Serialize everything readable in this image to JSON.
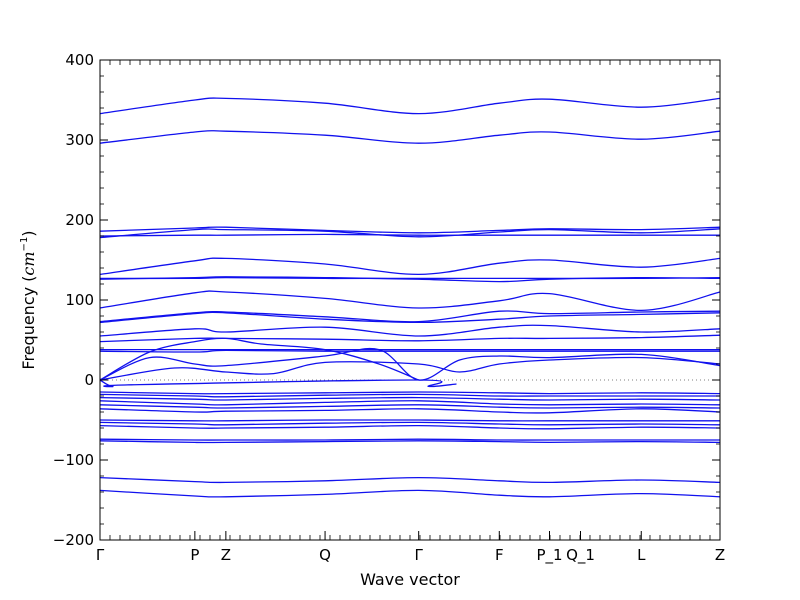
{
  "chart_data": {
    "type": "line",
    "title": "",
    "xlabel": "Wave vector",
    "ylabel": "Frequency",
    "ylabel_unit": "cm",
    "ylabel_unit_power": "−1",
    "ylim": [
      -200,
      400
    ],
    "yticks": [
      400,
      300,
      200,
      100,
      0,
      -100,
      -200
    ],
    "ytick_labels": [
      "400",
      "300",
      "200",
      "100",
      "0",
      "−100",
      "−200"
    ],
    "grid": false,
    "zero_line": "dotted",
    "line_color": "#1111ee",
    "xlim": [
      0,
      1
    ],
    "xticks": [
      {
        "label": "Γ",
        "pos": 0.0
      },
      {
        "label": "P",
        "pos": 0.153
      },
      {
        "label": "Z",
        "pos": 0.203
      },
      {
        "label": "Q",
        "pos": 0.363
      },
      {
        "label": "Γ",
        "pos": 0.514
      },
      {
        "label": "F",
        "pos": 0.644
      },
      {
        "label": "P_1",
        "pos": 0.725
      },
      {
        "label": "Q_1",
        "pos": 0.775
      },
      {
        "label": "L",
        "pos": 0.873
      },
      {
        "label": "Z",
        "pos": 1.0
      }
    ],
    "series": [
      {
        "x": [
          0,
          0.153,
          0.203,
          0.363,
          0.514,
          0.644,
          0.725,
          0.873,
          1.0
        ],
        "values": [
          333,
          350,
          352,
          346,
          333,
          346,
          351,
          341,
          352
        ]
      },
      {
        "x": [
          0,
          0.153,
          0.203,
          0.363,
          0.514,
          0.644,
          0.725,
          0.873,
          1.0
        ],
        "values": [
          296,
          310,
          311,
          306,
          296,
          306,
          310,
          301,
          311
        ]
      },
      {
        "x": [
          0,
          0.153,
          0.203,
          0.363,
          0.514,
          0.644,
          0.725,
          0.873,
          1.0
        ],
        "values": [
          186,
          190,
          191,
          187,
          184,
          187,
          189,
          188,
          191
        ]
      },
      {
        "x": [
          0,
          0.153,
          0.203,
          0.363,
          0.514,
          0.644,
          0.725,
          0.873,
          1.0
        ],
        "values": [
          178,
          188,
          188,
          186,
          179,
          185,
          188,
          184,
          189
        ]
      },
      {
        "x": [
          0,
          0.153,
          0.203,
          0.363,
          0.514,
          0.644,
          0.725,
          0.873,
          1.0
        ],
        "values": [
          180,
          181,
          181,
          182,
          181,
          181,
          181,
          181,
          181
        ]
      },
      {
        "x": [
          0,
          0.153,
          0.203,
          0.363,
          0.514,
          0.644,
          0.725,
          0.873,
          1.0
        ],
        "values": [
          132,
          149,
          152,
          145,
          132,
          146,
          150,
          141,
          152
        ]
      },
      {
        "x": [
          0,
          0.153,
          0.203,
          0.363,
          0.514,
          0.644,
          0.725,
          0.873,
          1.0
        ],
        "values": [
          127,
          127,
          128,
          127,
          127,
          127,
          127,
          127,
          128
        ]
      },
      {
        "x": [
          0,
          0.153,
          0.203,
          0.363,
          0.514,
          0.644,
          0.725,
          0.873,
          1.0
        ],
        "values": [
          126,
          128,
          129,
          128,
          126,
          123,
          126,
          128,
          127
        ]
      },
      {
        "x": [
          0,
          0.153,
          0.203,
          0.363,
          0.514,
          0.644,
          0.725,
          0.873,
          1.0
        ],
        "values": [
          90,
          109,
          110,
          102,
          90,
          99,
          108,
          87,
          110
        ]
      },
      {
        "x": [
          0,
          0.153,
          0.203,
          0.363,
          0.514,
          0.644,
          0.725,
          0.873,
          1.0
        ],
        "values": [
          73,
          84,
          85,
          79,
          73,
          86,
          83,
          85,
          86
        ]
      },
      {
        "x": [
          0,
          0.153,
          0.203,
          0.363,
          0.514,
          0.644,
          0.725,
          0.873,
          1.0
        ],
        "values": [
          72,
          83,
          84,
          76,
          72,
          76,
          80,
          82,
          84
        ]
      },
      {
        "x": [
          0,
          0.153,
          0.203,
          0.363,
          0.514,
          0.644,
          0.725,
          0.873,
          1.0
        ],
        "values": [
          55,
          64,
          60,
          66,
          55,
          66,
          68,
          60,
          64
        ]
      },
      {
        "x": [
          0,
          0.153,
          0.203,
          0.363,
          0.514,
          0.644,
          0.725,
          0.873,
          1.0
        ],
        "values": [
          48,
          52,
          52,
          51,
          49,
          52,
          52,
          53,
          56
        ]
      },
      {
        "x": [
          0,
          0.153,
          0.203,
          0.363,
          0.514,
          0.644,
          0.725,
          0.873,
          1.0
        ],
        "values": [
          38,
          38,
          38,
          38,
          38,
          38,
          38,
          38,
          38
        ]
      },
      {
        "x": [
          0,
          0.153,
          0.203,
          0.363,
          0.514,
          0.644,
          0.725,
          0.873,
          1.0
        ],
        "values": [
          36,
          35,
          37,
          36,
          36,
          36,
          36,
          36,
          36
        ]
      },
      {
        "x": [
          0,
          0.08,
          0.153,
          0.203,
          0.26,
          0.363,
          0.45,
          0.514
        ],
        "values": [
          0,
          35,
          48,
          52,
          45,
          38,
          20,
          0
        ]
      },
      {
        "x": [
          0,
          0.08,
          0.153,
          0.203,
          0.363,
          0.45,
          0.514,
          0.58,
          0.644,
          0.725,
          0.873,
          1.0
        ],
        "values": [
          0,
          28,
          20,
          18,
          30,
          38,
          0,
          25,
          30,
          28,
          32,
          18
        ]
      },
      {
        "x": [
          0,
          0.12,
          0.203,
          0.28,
          0.363,
          0.514,
          0.58,
          0.644,
          0.725,
          0.873,
          1.0
        ],
        "values": [
          0,
          15,
          10,
          8,
          22,
          20,
          10,
          20,
          25,
          28,
          20
        ]
      },
      {
        "x": [
          0,
          0.02,
          0.05,
          0.514,
          0.53,
          0.575
        ],
        "values": [
          0,
          -8,
          -6,
          0,
          -8,
          -5
        ]
      },
      {
        "x": [
          0,
          0.153,
          0.203,
          0.363,
          0.514,
          0.644,
          0.725,
          0.873,
          1.0
        ],
        "values": [
          -15,
          -17,
          -17,
          -16,
          -15,
          -16,
          -17,
          -16,
          -17
        ]
      },
      {
        "x": [
          0,
          0.153,
          0.203,
          0.363,
          0.514,
          0.644,
          0.725,
          0.873,
          1.0
        ],
        "values": [
          -18,
          -20,
          -21,
          -19,
          -18,
          -20,
          -20,
          -20,
          -20
        ]
      },
      {
        "x": [
          0,
          0.153,
          0.203,
          0.363,
          0.514,
          0.644,
          0.725,
          0.873,
          1.0
        ],
        "values": [
          -22,
          -24,
          -25,
          -23,
          -22,
          -24,
          -25,
          -24,
          -25
        ]
      },
      {
        "x": [
          0,
          0.153,
          0.203,
          0.363,
          0.514,
          0.644,
          0.725,
          0.873,
          1.0
        ],
        "values": [
          -26,
          -30,
          -31,
          -28,
          -26,
          -30,
          -31,
          -30,
          -31
        ]
      },
      {
        "x": [
          0,
          0.153,
          0.203,
          0.363,
          0.514,
          0.644,
          0.725,
          0.873,
          1.0
        ],
        "values": [
          -31,
          -34,
          -35,
          -33,
          -31,
          -34,
          -35,
          -34,
          -35
        ]
      },
      {
        "x": [
          0,
          0.153,
          0.203,
          0.363,
          0.514,
          0.644,
          0.725,
          0.873,
          1.0
        ],
        "values": [
          -36,
          -40,
          -39,
          -38,
          -36,
          -40,
          -41,
          -36,
          -40
        ]
      },
      {
        "x": [
          0,
          0.153,
          0.203,
          0.363,
          0.514,
          0.644,
          0.725,
          0.873,
          1.0
        ],
        "values": [
          -50,
          -51,
          -51,
          -50,
          -50,
          -51,
          -51,
          -51,
          -51
        ]
      },
      {
        "x": [
          0,
          0.153,
          0.203,
          0.363,
          0.514,
          0.644,
          0.725,
          0.873,
          1.0
        ],
        "values": [
          -53,
          -55,
          -56,
          -54,
          -53,
          -55,
          -56,
          -55,
          -56
        ]
      },
      {
        "x": [
          0,
          0.153,
          0.203,
          0.363,
          0.514,
          0.644,
          0.725,
          0.873,
          1.0
        ],
        "values": [
          -57,
          -60,
          -60,
          -59,
          -57,
          -60,
          -61,
          -59,
          -60
        ]
      },
      {
        "x": [
          0,
          0.153,
          0.203,
          0.363,
          0.514,
          0.644,
          0.725,
          0.873,
          1.0
        ],
        "values": [
          -74,
          -75,
          -75,
          -75,
          -74,
          -75,
          -75,
          -75,
          -75
        ]
      },
      {
        "x": [
          0,
          0.153,
          0.203,
          0.363,
          0.514,
          0.644,
          0.725,
          0.873,
          1.0
        ],
        "values": [
          -76,
          -78,
          -78,
          -77,
          -76,
          -77,
          -78,
          -77,
          -78
        ]
      },
      {
        "x": [
          0,
          0.153,
          0.203,
          0.363,
          0.514,
          0.644,
          0.725,
          0.873,
          1.0
        ],
        "values": [
          -122,
          -127,
          -128,
          -126,
          -122,
          -126,
          -128,
          -125,
          -128
        ]
      },
      {
        "x": [
          0,
          0.153,
          0.203,
          0.363,
          0.514,
          0.644,
          0.725,
          0.873,
          1.0
        ],
        "values": [
          -138,
          -145,
          -146,
          -143,
          -138,
          -144,
          -146,
          -142,
          -146
        ]
      }
    ]
  }
}
